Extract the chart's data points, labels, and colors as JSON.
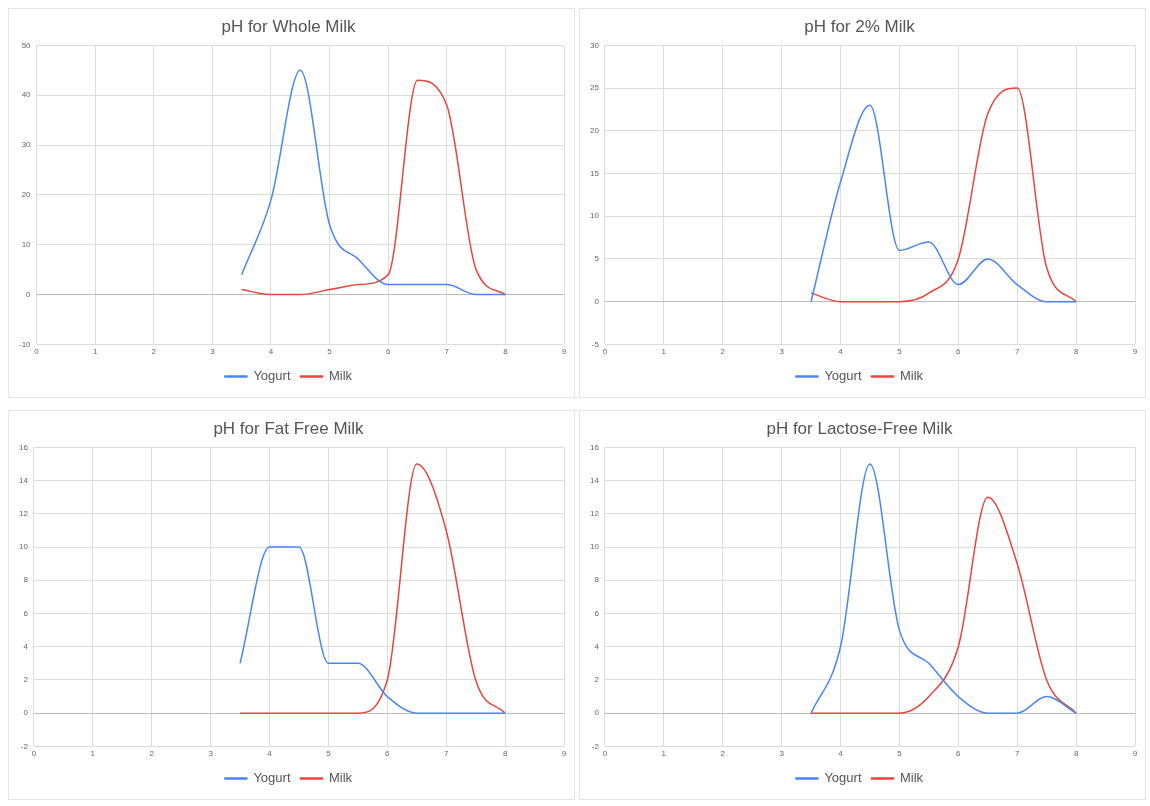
{
  "chart_data": [
    {
      "type": "line",
      "title": "pH for Whole Milk",
      "x": [
        3.5,
        4,
        4.5,
        5,
        5.5,
        6,
        6.5,
        7,
        7.5,
        8
      ],
      "series": [
        {
          "name": "Yogurt",
          "color": "#4a86f0",
          "values": [
            4,
            19,
            45,
            14,
            7,
            2,
            2,
            2,
            0,
            0
          ]
        },
        {
          "name": "Milk",
          "color": "#e8453c",
          "values": [
            1,
            0,
            0,
            1,
            2,
            4,
            43,
            38,
            5,
            0
          ]
        }
      ],
      "xlim": [
        0,
        9
      ],
      "xticks": [
        0,
        1,
        2,
        3,
        4,
        5,
        6,
        7,
        8,
        9
      ],
      "ylim": [
        -10,
        50
      ],
      "yticks": [
        -10,
        0,
        10,
        20,
        30,
        40,
        50
      ],
      "grid": true,
      "legend": "bottom",
      "marker": "none"
    },
    {
      "type": "line",
      "title": "pH for 2% Milk",
      "x": [
        3.5,
        4,
        4.5,
        5,
        5.5,
        6,
        6.5,
        7,
        7.5,
        8
      ],
      "series": [
        {
          "name": "Yogurt",
          "color": "#4a86f0",
          "values": [
            0,
            14,
            23,
            6,
            7,
            2,
            5,
            2,
            0,
            0
          ]
        },
        {
          "name": "Milk",
          "color": "#e8453c",
          "values": [
            1,
            0,
            0,
            0,
            1,
            5,
            22,
            25,
            4,
            0
          ]
        }
      ],
      "xlim": [
        0,
        9
      ],
      "xticks": [
        0,
        1,
        2,
        3,
        4,
        5,
        6,
        7,
        8,
        9
      ],
      "ylim": [
        -5,
        30
      ],
      "yticks": [
        -5,
        0,
        5,
        10,
        15,
        20,
        25,
        30
      ],
      "grid": true,
      "legend": "bottom",
      "marker": "none"
    },
    {
      "type": "line",
      "title": "pH for Fat Free Milk",
      "x": [
        3.5,
        4,
        4.5,
        5,
        5.5,
        6,
        6.5,
        7,
        7.5,
        8
      ],
      "series": [
        {
          "name": "Yogurt",
          "color": "#4a86f0",
          "values": [
            3,
            10,
            10,
            3,
            3,
            1,
            0,
            0,
            0,
            0
          ]
        },
        {
          "name": "Milk",
          "color": "#e8453c",
          "values": [
            0,
            0,
            0,
            0,
            0,
            2,
            15,
            11,
            2,
            0
          ]
        }
      ],
      "xlim": [
        0,
        9
      ],
      "xticks": [
        0,
        1,
        2,
        3,
        4,
        5,
        6,
        7,
        8,
        9
      ],
      "ylim": [
        -2,
        16
      ],
      "yticks": [
        -2,
        0,
        2,
        4,
        6,
        8,
        10,
        12,
        14,
        16
      ],
      "grid": true,
      "legend": "bottom",
      "marker": "none"
    },
    {
      "type": "line",
      "title": "pH for Lactose-Free Milk",
      "x": [
        3.5,
        4,
        4.5,
        5,
        5.5,
        6,
        6.5,
        7,
        7.5,
        8
      ],
      "series": [
        {
          "name": "Yogurt",
          "color": "#4a86f0",
          "values": [
            0,
            4,
            15,
            5,
            3,
            1,
            0,
            0,
            1,
            0
          ]
        },
        {
          "name": "Milk",
          "color": "#e8453c",
          "values": [
            0,
            0,
            0,
            0,
            1,
            4,
            13,
            9,
            2,
            0
          ]
        }
      ],
      "xlim": [
        0,
        9
      ],
      "xticks": [
        0,
        1,
        2,
        3,
        4,
        5,
        6,
        7,
        8,
        9
      ],
      "ylim": [
        -2,
        16
      ],
      "yticks": [
        -2,
        0,
        2,
        4,
        6,
        8,
        10,
        12,
        14,
        16
      ],
      "grid": true,
      "legend": "bottom",
      "marker": "none"
    }
  ]
}
